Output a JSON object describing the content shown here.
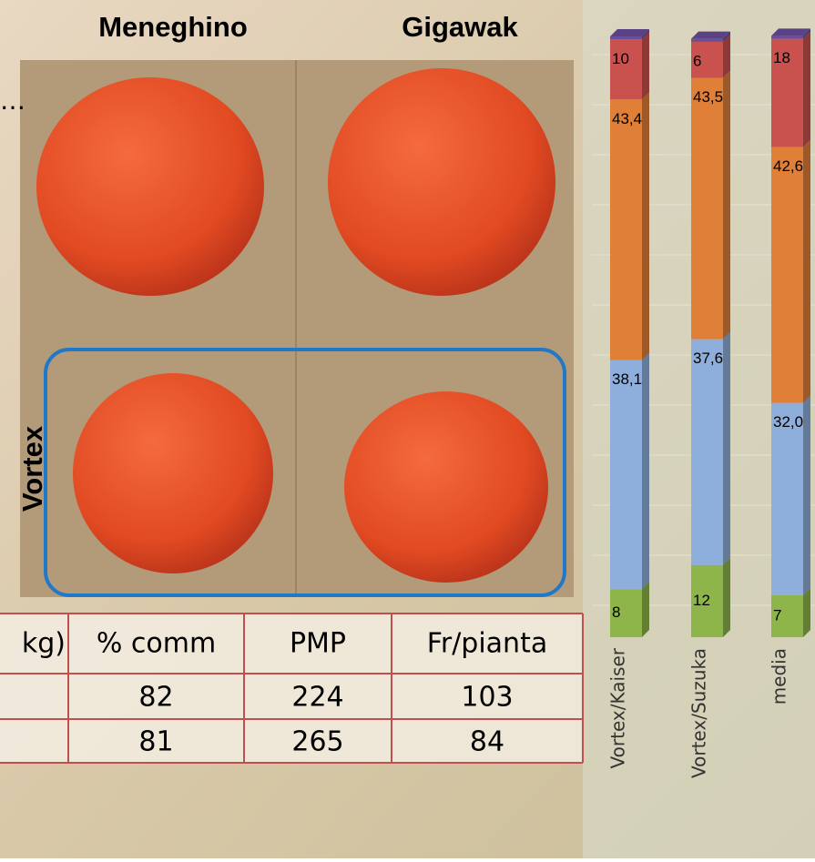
{
  "photo": {
    "left_label": "Meneghino",
    "right_label": "Gigawak",
    "row_label": "Vortex",
    "ellipsis": "…"
  },
  "table": {
    "header": [
      "kg)",
      "% comm",
      "PMP",
      "Fr/pianta"
    ],
    "rows": [
      [
        82,
        224,
        103
      ],
      [
        81,
        265,
        84
      ]
    ]
  },
  "chart_data": {
    "type": "bar",
    "stacked": true,
    "categories": [
      "Vortex/Kaiser",
      "Vortex/Suzuka",
      "media"
    ],
    "ylim": [
      0,
      100
    ],
    "grid": true,
    "series": [
      {
        "color": "#8db54a",
        "values": [
          8,
          12,
          7
        ]
      },
      {
        "color": "#8eaedb",
        "values": [
          38.1,
          37.6,
          32.0
        ],
        "value_labels": [
          "38,1",
          "37,6",
          "32,0"
        ]
      },
      {
        "color": "#e07f37",
        "values": [
          43.4,
          43.5,
          42.6
        ],
        "value_labels": [
          "43,4",
          "43,5",
          "42,6"
        ]
      },
      {
        "color": "#c9514e",
        "values": [
          10,
          6,
          18
        ]
      },
      {
        "color": "#6a4e9b",
        "values": [
          0.5,
          0.5,
          0.5
        ]
      }
    ]
  }
}
